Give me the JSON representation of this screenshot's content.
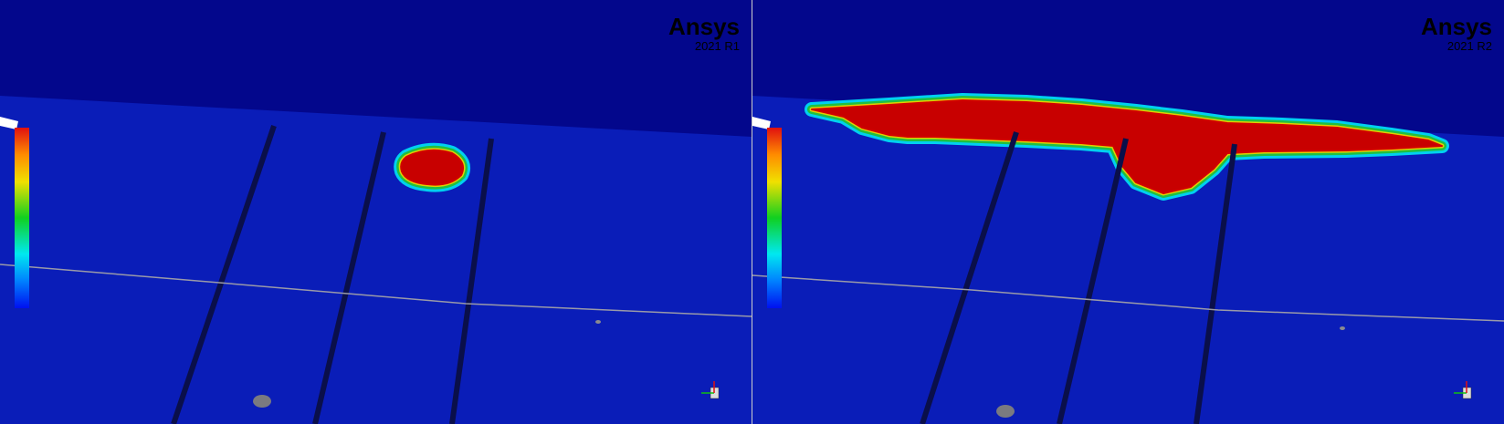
{
  "panels": [
    {
      "logo": "Ansys",
      "version": "2021 R1"
    },
    {
      "logo": "Ansys",
      "version": "2021 R2"
    }
  ]
}
